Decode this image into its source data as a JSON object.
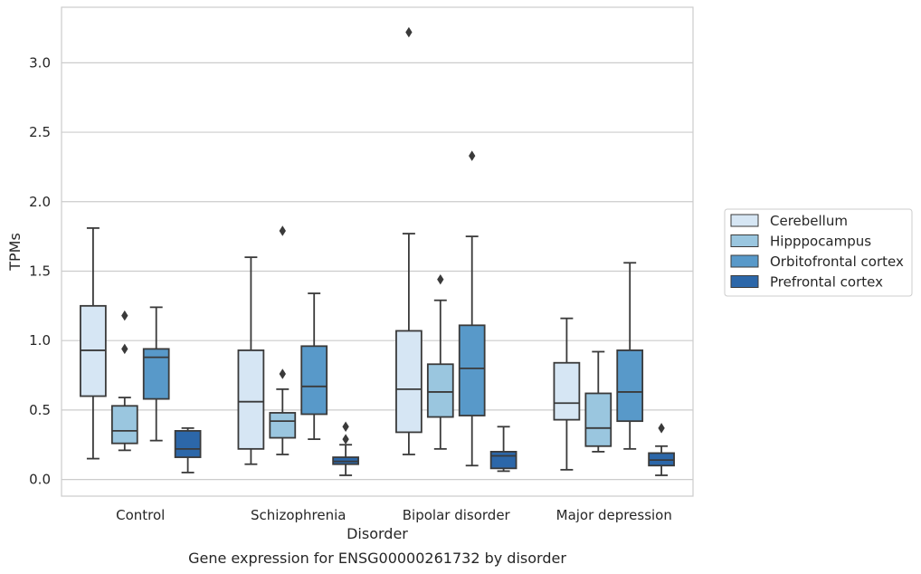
{
  "caption": "Gene expression for ENSG00000261732 by disorder",
  "chart_data": {
    "type": "box",
    "xlabel": "Disorder",
    "ylabel": "TPMs",
    "ylim": [
      -0.12,
      3.4
    ],
    "yticks": [
      "0.0",
      "0.5",
      "1.0",
      "1.5",
      "2.0",
      "2.5",
      "3.0"
    ],
    "grid": "horizontal",
    "legend_position": "right",
    "categories": [
      "Control",
      "Schizophrenia",
      "Bipolar disorder",
      "Major depression"
    ],
    "series": [
      {
        "name": "Cerebellum",
        "color": "#d6e6f4",
        "boxes": [
          {
            "whislo": 0.15,
            "q1": 0.6,
            "med": 0.93,
            "q3": 1.25,
            "whishi": 1.81,
            "fliers": []
          },
          {
            "whislo": 0.11,
            "q1": 0.22,
            "med": 0.56,
            "q3": 0.93,
            "whishi": 1.6,
            "fliers": []
          },
          {
            "whislo": 0.18,
            "q1": 0.34,
            "med": 0.65,
            "q3": 1.07,
            "whishi": 1.77,
            "fliers": [
              3.22
            ]
          },
          {
            "whislo": 0.07,
            "q1": 0.43,
            "med": 0.55,
            "q3": 0.84,
            "whishi": 1.16,
            "fliers": []
          }
        ]
      },
      {
        "name": "Hipppocampus",
        "color": "#9ac6df",
        "boxes": [
          {
            "whislo": 0.21,
            "q1": 0.26,
            "med": 0.35,
            "q3": 0.53,
            "whishi": 0.59,
            "fliers": [
              1.18,
              0.94
            ]
          },
          {
            "whislo": 0.18,
            "q1": 0.3,
            "med": 0.42,
            "q3": 0.48,
            "whishi": 0.65,
            "fliers": [
              1.79,
              0.76
            ]
          },
          {
            "whislo": 0.22,
            "q1": 0.45,
            "med": 0.63,
            "q3": 0.83,
            "whishi": 1.29,
            "fliers": [
              1.44
            ]
          },
          {
            "whislo": 0.2,
            "q1": 0.24,
            "med": 0.37,
            "q3": 0.62,
            "whishi": 0.92,
            "fliers": []
          }
        ]
      },
      {
        "name": "Orbitofrontal cortex",
        "color": "#5899c9",
        "boxes": [
          {
            "whislo": 0.28,
            "q1": 0.58,
            "med": 0.88,
            "q3": 0.94,
            "whishi": 1.24,
            "fliers": []
          },
          {
            "whislo": 0.29,
            "q1": 0.47,
            "med": 0.67,
            "q3": 0.96,
            "whishi": 1.34,
            "fliers": []
          },
          {
            "whislo": 0.1,
            "q1": 0.46,
            "med": 0.8,
            "q3": 1.11,
            "whishi": 1.75,
            "fliers": [
              2.33
            ]
          },
          {
            "whislo": 0.22,
            "q1": 0.42,
            "med": 0.63,
            "q3": 0.93,
            "whishi": 1.56,
            "fliers": []
          }
        ]
      },
      {
        "name": "Prefrontal cortex",
        "color": "#2c67a9",
        "boxes": [
          {
            "whislo": 0.05,
            "q1": 0.16,
            "med": 0.22,
            "q3": 0.35,
            "whishi": 0.37,
            "fliers": []
          },
          {
            "whislo": 0.03,
            "q1": 0.11,
            "med": 0.13,
            "q3": 0.16,
            "whishi": 0.25,
            "fliers": [
              0.38,
              0.29
            ]
          },
          {
            "whislo": 0.06,
            "q1": 0.08,
            "med": 0.17,
            "q3": 0.2,
            "whishi": 0.38,
            "fliers": []
          },
          {
            "whislo": 0.03,
            "q1": 0.1,
            "med": 0.14,
            "q3": 0.19,
            "whishi": 0.24,
            "fliers": [
              0.37
            ]
          }
        ]
      }
    ]
  }
}
